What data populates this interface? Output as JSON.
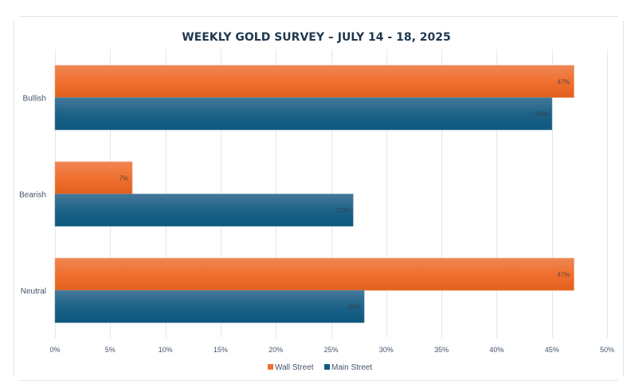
{
  "chart_data": {
    "type": "bar",
    "orientation": "horizontal",
    "title": "WEEKLY GOLD SURVEY – JULY 14 - 18, 2025",
    "categories": [
      "Bullish",
      "Bearish",
      "Neutral"
    ],
    "series": [
      {
        "name": "Wall Street",
        "values": [
          47,
          7,
          47
        ],
        "labels": [
          "47%",
          "7%",
          "47%"
        ],
        "color": "#f07030"
      },
      {
        "name": "Main Street",
        "values": [
          45,
          27,
          28
        ],
        "labels": [
          "45%",
          "27%",
          "28%"
        ],
        "color": "#0e5a80"
      }
    ],
    "xlim": [
      0,
      50
    ],
    "xticks": [
      0,
      5,
      10,
      15,
      20,
      25,
      30,
      35,
      40,
      45,
      50
    ],
    "xtick_labels": [
      "0%",
      "5%",
      "10%",
      "15%",
      "20%",
      "25%",
      "30%",
      "35%",
      "40%",
      "45%",
      "50%"
    ],
    "xlabel": "",
    "ylabel": "",
    "grid": "vertical",
    "legend": "bottom-center",
    "colors": {
      "title": "#1f3850",
      "axis_text": "#44546a",
      "grid": "#dde8f2",
      "frame": "#dbe6ef"
    }
  }
}
